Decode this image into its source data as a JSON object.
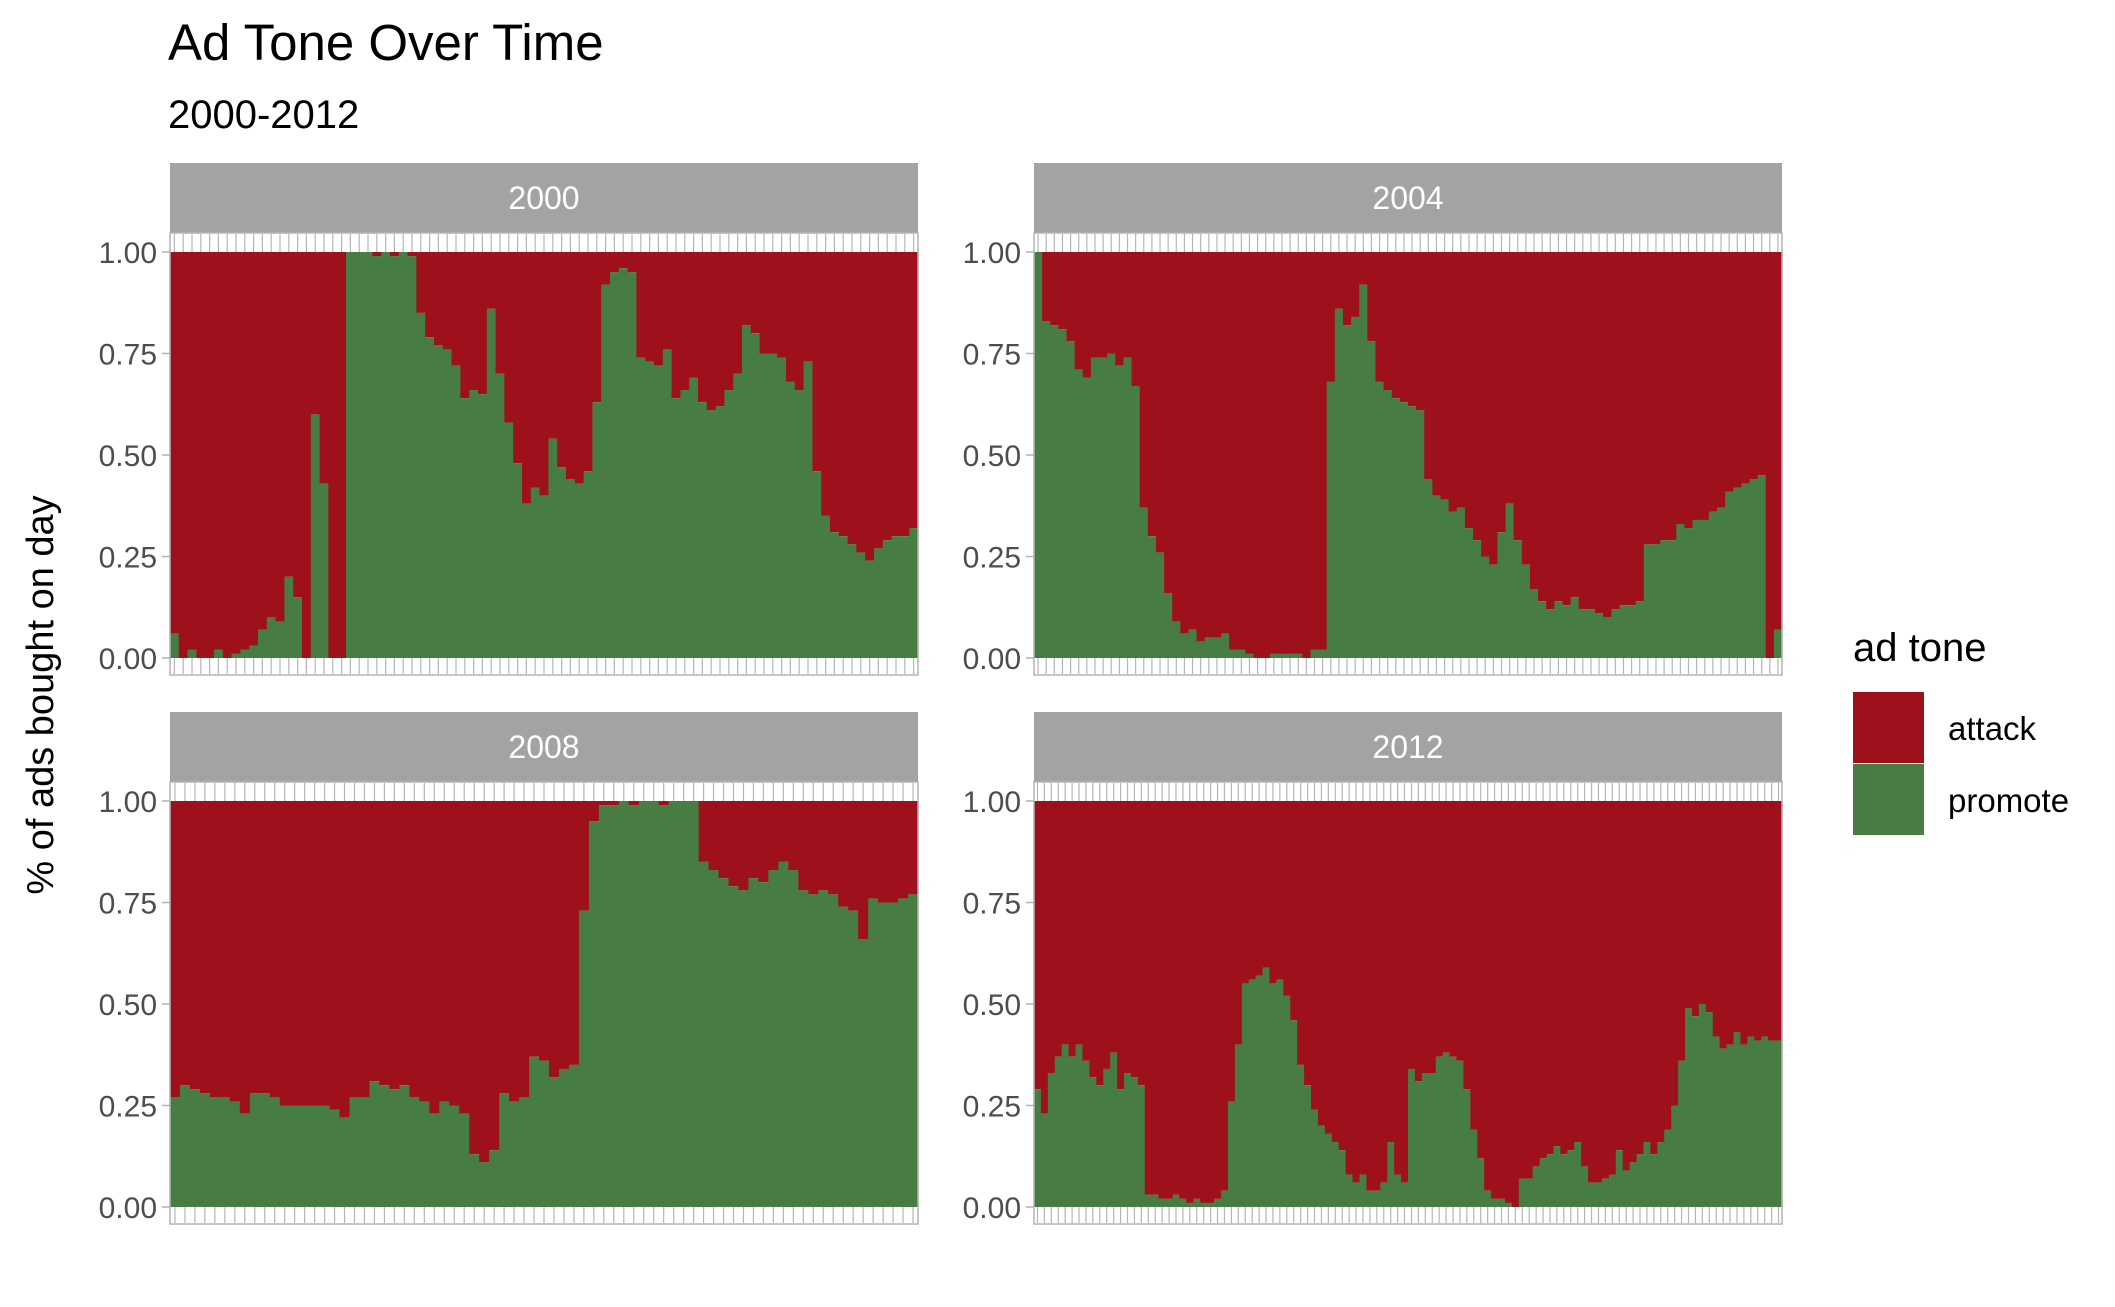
{
  "chart_data": {
    "type": "bar",
    "title": "Ad Tone Over Time",
    "subtitle": "2000-2012",
    "xlabel": "",
    "ylabel": "% of ads bought on day",
    "ylim": [
      0,
      1
    ],
    "yticks": [
      "0.00",
      "0.25",
      "0.50",
      "0.75",
      "1.00"
    ],
    "grid": false,
    "stacked": true,
    "legend": {
      "title": "ad tone",
      "placement": "right",
      "entries": [
        {
          "name": "attack",
          "color": "#9E111C"
        },
        {
          "name": "promote",
          "color": "#477C43"
        }
      ]
    },
    "panels": [
      {
        "label": "2000",
        "series": [
          {
            "name": "promote",
            "values": [
              0.06,
              0.0,
              0.02,
              0.0,
              0.0,
              0.02,
              0.0,
              0.01,
              0.02,
              0.03,
              0.07,
              0.1,
              0.09,
              0.2,
              0.15,
              0.0,
              0.6,
              0.43,
              0.0,
              0.0,
              1.0,
              1.0,
              1.0,
              0.99,
              1.0,
              0.99,
              1.0,
              0.99,
              0.85,
              0.79,
              0.77,
              0.76,
              0.72,
              0.64,
              0.66,
              0.65,
              0.86,
              0.7,
              0.58,
              0.48,
              0.38,
              0.42,
              0.4,
              0.54,
              0.47,
              0.44,
              0.43,
              0.46,
              0.63,
              0.92,
              0.95,
              0.96,
              0.95,
              0.74,
              0.73,
              0.72,
              0.76,
              0.64,
              0.66,
              0.69,
              0.63,
              0.61,
              0.62,
              0.66,
              0.7,
              0.82,
              0.8,
              0.75,
              0.75,
              0.74,
              0.68,
              0.66,
              0.73,
              0.46,
              0.35,
              0.31,
              0.3,
              0.28,
              0.26,
              0.24,
              0.27,
              0.29,
              0.3,
              0.3,
              0.32
            ]
          }
        ]
      },
      {
        "label": "2004",
        "series": [
          {
            "name": "promote",
            "values": [
              1.0,
              0.83,
              0.82,
              0.81,
              0.78,
              0.71,
              0.69,
              0.74,
              0.74,
              0.75,
              0.72,
              0.74,
              0.67,
              0.37,
              0.3,
              0.26,
              0.16,
              0.09,
              0.06,
              0.07,
              0.04,
              0.05,
              0.05,
              0.06,
              0.02,
              0.02,
              0.01,
              0.0,
              0.0,
              0.01,
              0.01,
              0.01,
              0.01,
              0.0,
              0.02,
              0.02,
              0.68,
              0.86,
              0.82,
              0.84,
              0.92,
              0.78,
              0.68,
              0.66,
              0.64,
              0.63,
              0.62,
              0.61,
              0.44,
              0.4,
              0.39,
              0.36,
              0.37,
              0.32,
              0.29,
              0.25,
              0.23,
              0.31,
              0.38,
              0.29,
              0.23,
              0.17,
              0.14,
              0.12,
              0.14,
              0.13,
              0.15,
              0.12,
              0.12,
              0.11,
              0.1,
              0.12,
              0.13,
              0.13,
              0.14,
              0.28,
              0.28,
              0.29,
              0.29,
              0.33,
              0.32,
              0.34,
              0.34,
              0.36,
              0.37,
              0.41,
              0.42,
              0.43,
              0.44,
              0.45,
              0.0,
              0.07
            ]
          }
        ]
      },
      {
        "label": "2008",
        "series": [
          {
            "name": "promote",
            "values": [
              0.27,
              0.3,
              0.29,
              0.28,
              0.27,
              0.27,
              0.26,
              0.23,
              0.28,
              0.28,
              0.27,
              0.25,
              0.25,
              0.25,
              0.25,
              0.25,
              0.24,
              0.22,
              0.27,
              0.27,
              0.31,
              0.3,
              0.29,
              0.3,
              0.27,
              0.26,
              0.23,
              0.26,
              0.25,
              0.23,
              0.13,
              0.11,
              0.14,
              0.28,
              0.26,
              0.27,
              0.37,
              0.36,
              0.32,
              0.34,
              0.35,
              0.73,
              0.95,
              0.99,
              0.99,
              1.0,
              0.99,
              1.0,
              1.0,
              0.99,
              1.0,
              1.0,
              1.0,
              0.85,
              0.83,
              0.81,
              0.79,
              0.78,
              0.81,
              0.8,
              0.83,
              0.85,
              0.83,
              0.78,
              0.77,
              0.78,
              0.77,
              0.74,
              0.73,
              0.66,
              0.76,
              0.75,
              0.75,
              0.76,
              0.77
            ]
          }
        ]
      },
      {
        "label": "2012",
        "series": [
          {
            "name": "promote",
            "values": [
              0.29,
              0.23,
              0.33,
              0.37,
              0.4,
              0.37,
              0.4,
              0.36,
              0.32,
              0.3,
              0.34,
              0.38,
              0.29,
              0.33,
              0.32,
              0.3,
              0.03,
              0.03,
              0.02,
              0.02,
              0.03,
              0.02,
              0.01,
              0.02,
              0.01,
              0.01,
              0.02,
              0.04,
              0.26,
              0.4,
              0.55,
              0.56,
              0.57,
              0.59,
              0.55,
              0.56,
              0.52,
              0.46,
              0.35,
              0.3,
              0.24,
              0.2,
              0.18,
              0.16,
              0.14,
              0.08,
              0.06,
              0.08,
              0.04,
              0.04,
              0.06,
              0.16,
              0.08,
              0.06,
              0.34,
              0.31,
              0.33,
              0.33,
              0.37,
              0.38,
              0.37,
              0.36,
              0.29,
              0.19,
              0.12,
              0.04,
              0.02,
              0.02,
              0.01,
              0.0,
              0.07,
              0.07,
              0.1,
              0.12,
              0.13,
              0.15,
              0.13,
              0.14,
              0.16,
              0.1,
              0.06,
              0.06,
              0.07,
              0.08,
              0.14,
              0.09,
              0.11,
              0.13,
              0.16,
              0.13,
              0.16,
              0.19,
              0.25,
              0.36,
              0.49,
              0.47,
              0.5,
              0.48,
              0.42,
              0.39,
              0.4,
              0.43,
              0.4,
              0.42,
              0.41,
              0.42,
              0.41,
              0.41
            ]
          }
        ]
      }
    ]
  }
}
